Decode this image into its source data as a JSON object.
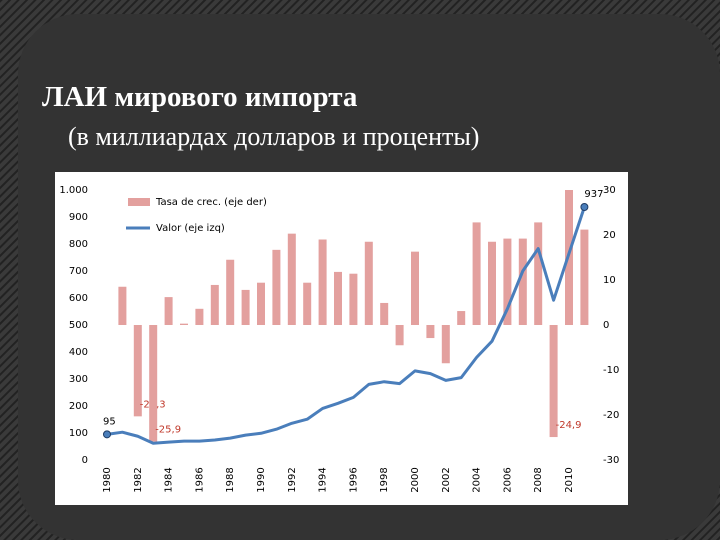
{
  "title": "ЛАИ мирового импорта",
  "subtitle": "(в миллиардах долларов и проценты)",
  "chart_data": {
    "type": "bar-line",
    "categories": [
      "1980",
      null,
      "1982",
      null,
      "1984",
      null,
      "1986",
      null,
      "1988",
      null,
      "1990",
      null,
      "1992",
      null,
      "1994",
      null,
      "1996",
      null,
      "1998",
      null,
      "2000",
      null,
      "2002",
      null,
      "2004",
      null,
      "2006",
      null,
      "2008",
      null,
      "2010",
      null
    ],
    "ylim": [
      0,
      1000
    ],
    "yticks": [
      0,
      100,
      200,
      300,
      400,
      500,
      600,
      700,
      800,
      900,
      {
        "value": 1000,
        "label": "1.000"
      }
    ],
    "y2lim": [
      -30,
      30
    ],
    "y2ticks": [
      -30,
      -20,
      -10,
      0,
      10,
      20,
      30
    ],
    "grid": false,
    "legend": "top-left",
    "series": [
      {
        "name": "Tasa de crec. (eje der)",
        "type": "bar",
        "axis": "y2",
        "color": "#e3a09e",
        "values": [
          null,
          8.5,
          -20.3,
          -25.9,
          6.2,
          0.3,
          3.6,
          8.9,
          14.5,
          7.8,
          9.4,
          16.7,
          20.3,
          9.4,
          19,
          11.8,
          11.4,
          18.5,
          4.9,
          -4.5,
          16.3,
          -2.9,
          -8.5,
          3.1,
          22.8,
          18.5,
          19.2,
          19.2,
          22.8,
          -24.9,
          30,
          21.2
        ],
        "value_labels": [
          null,
          null,
          "-20,3",
          "-25,9",
          null,
          null,
          null,
          null,
          null,
          null,
          null,
          null,
          null,
          null,
          null,
          null,
          null,
          null,
          null,
          null,
          null,
          null,
          null,
          null,
          null,
          null,
          null,
          null,
          null,
          "-24,9",
          null,
          null
        ]
      },
      {
        "name": "Valor (eje izq)",
        "type": "line",
        "color": "#4a7ebb",
        "values": [
          95,
          103,
          88,
          62,
          66,
          70,
          70,
          74,
          81,
          92,
          99,
          114,
          136,
          151,
          191,
          210,
          232,
          280,
          290,
          283,
          330,
          320,
          295,
          305,
          380,
          440,
          560,
          700,
          783,
          592,
          765,
          937
        ],
        "value_labels": [
          "95",
          null,
          null,
          null,
          null,
          null,
          null,
          null,
          null,
          null,
          null,
          null,
          null,
          null,
          null,
          null,
          null,
          null,
          null,
          null,
          null,
          null,
          null,
          null,
          null,
          null,
          null,
          null,
          null,
          null,
          null,
          "937"
        ]
      }
    ]
  }
}
